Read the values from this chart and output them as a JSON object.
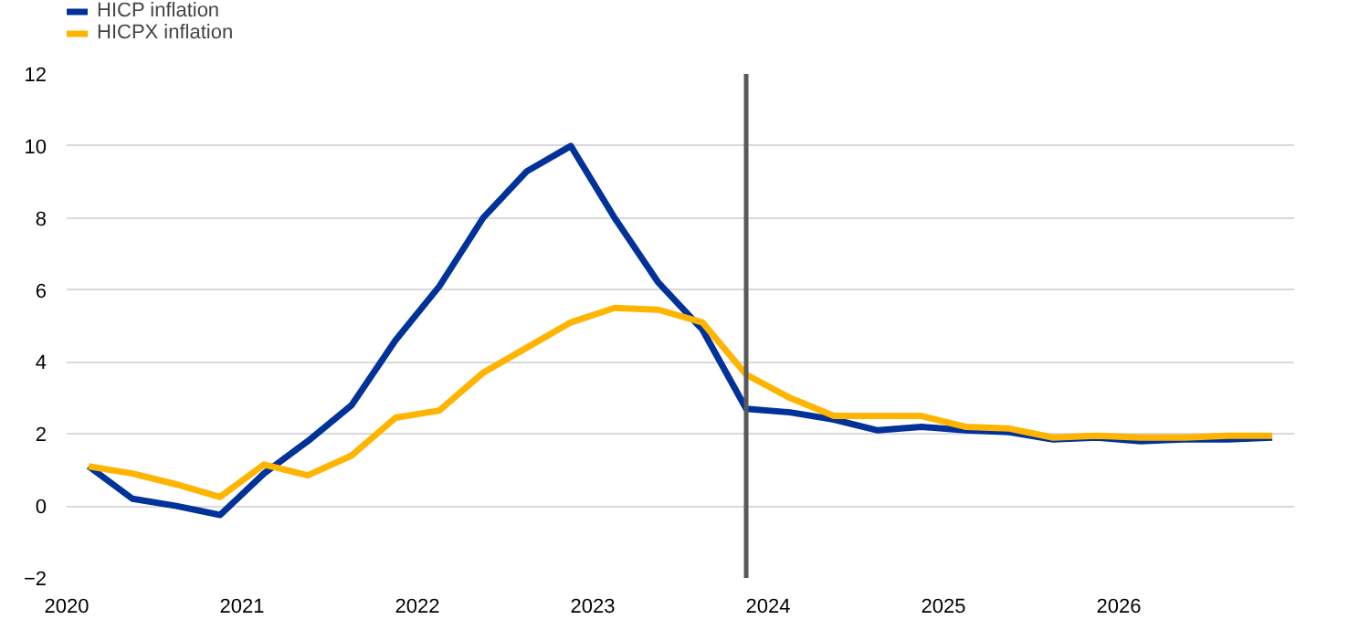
{
  "chart_data": {
    "type": "line",
    "x": [
      2020.125,
      2020.375,
      2020.625,
      2020.875,
      2021.125,
      2021.375,
      2021.625,
      2021.875,
      2022.125,
      2022.375,
      2022.625,
      2022.875,
      2023.125,
      2023.375,
      2023.625,
      2023.875,
      2024.125,
      2024.375,
      2024.625,
      2024.875,
      2025.125,
      2025.375,
      2025.625,
      2025.875,
      2026.125,
      2026.375,
      2026.625,
      2026.875
    ],
    "series": [
      {
        "name": "HICP inflation",
        "color": "#003299",
        "values": [
          1.1,
          0.2,
          0.0,
          -0.25,
          0.9,
          1.8,
          2.8,
          4.6,
          6.1,
          8.0,
          9.3,
          10.0,
          8.0,
          6.2,
          4.9,
          2.7,
          2.6,
          2.4,
          2.1,
          2.2,
          2.1,
          2.05,
          1.85,
          1.9,
          1.8,
          1.85,
          1.85,
          1.9
        ]
      },
      {
        "name": "HICPX inflation",
        "color": "#ffb400",
        "values": [
          1.1,
          0.9,
          0.6,
          0.25,
          1.15,
          0.85,
          1.4,
          2.45,
          2.65,
          3.7,
          4.4,
          5.1,
          5.5,
          5.45,
          5.1,
          3.65,
          3.0,
          2.5,
          2.5,
          2.5,
          2.2,
          2.15,
          1.9,
          1.95,
          1.9,
          1.9,
          1.95,
          1.95
        ]
      }
    ],
    "xlim": [
      2020,
      2027
    ],
    "xticks": [
      2020,
      2021,
      2022,
      2023,
      2024,
      2025,
      2026
    ],
    "ylim": [
      -2,
      12
    ],
    "yticks": [
      -2,
      0,
      2,
      4,
      6,
      8,
      10,
      12
    ],
    "ref_lines": [
      {
        "axis": "x",
        "value": 2023.875,
        "color": "#595959"
      }
    ],
    "grid": "y",
    "legend": "top left",
    "marker": "none",
    "line_style": "solid"
  }
}
